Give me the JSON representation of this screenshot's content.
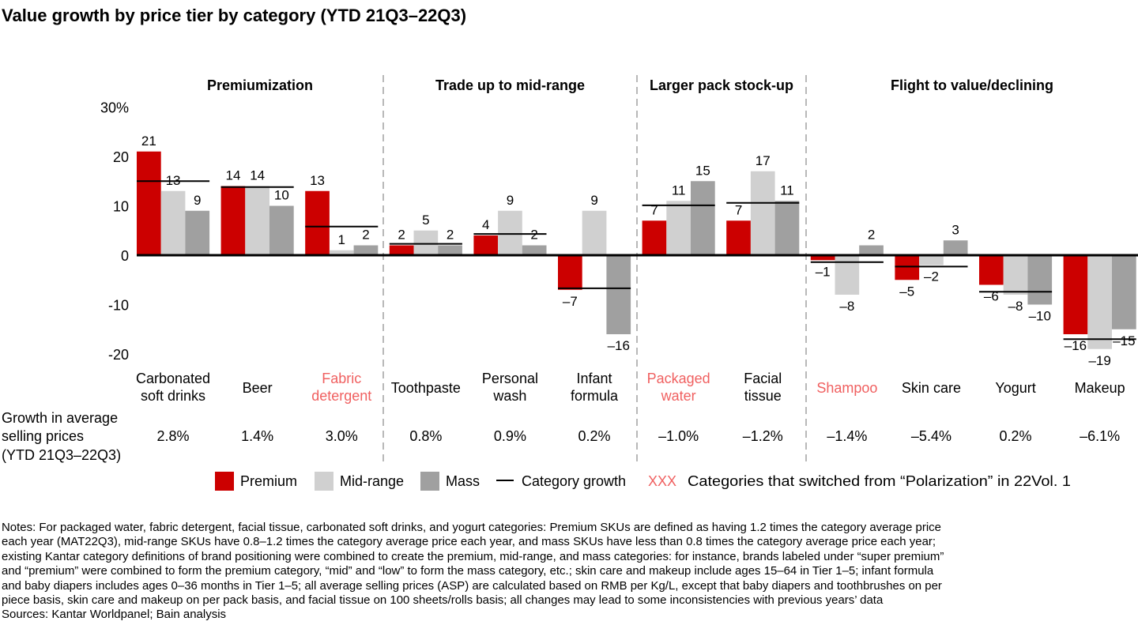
{
  "chart_data": {
    "type": "bar",
    "title": "Value growth by price tier by category (YTD 21Q3–22Q3)",
    "ylim": [
      -20,
      30
    ],
    "yticks": [
      "30%",
      "20",
      "10",
      "0",
      "-10",
      "-20"
    ],
    "ytick_values": [
      30,
      20,
      10,
      0,
      -10,
      -20
    ],
    "grid": false,
    "legend_position": "bottom",
    "sections": [
      {
        "label": "Premiumization",
        "categories": [
          0,
          1,
          2
        ]
      },
      {
        "label": "Trade up to mid-range",
        "categories": [
          3,
          4,
          5
        ]
      },
      {
        "label": "Larger pack stock-up",
        "categories": [
          6,
          7
        ]
      },
      {
        "label": "Flight to value/declining",
        "categories": [
          8,
          9,
          10,
          11
        ]
      }
    ],
    "categories": [
      {
        "line1": "Carbonated",
        "line2": "soft drinks",
        "switched": false
      },
      {
        "line1": "Beer",
        "line2": "",
        "switched": false
      },
      {
        "line1": "Fabric",
        "line2": "detergent",
        "switched": true
      },
      {
        "line1": "Toothpaste",
        "line2": "",
        "switched": false
      },
      {
        "line1": "Personal",
        "line2": "wash",
        "switched": false
      },
      {
        "line1": "Infant",
        "line2": "formula",
        "switched": false
      },
      {
        "line1": "Packaged",
        "line2": "water",
        "switched": true
      },
      {
        "line1": "Facial",
        "line2": "tissue",
        "switched": false
      },
      {
        "line1": "Shampoo",
        "line2": "",
        "switched": true
      },
      {
        "line1": "Skin care",
        "line2": "",
        "switched": false
      },
      {
        "line1": "Yogurt",
        "line2": "",
        "switched": false
      },
      {
        "line1": "Makeup",
        "line2": "",
        "switched": false
      }
    ],
    "series": [
      {
        "name": "Premium",
        "color": "#cc0000",
        "values": [
          21,
          14,
          13,
          2,
          4,
          -7,
          7,
          7,
          -1,
          -5,
          -6,
          -16
        ],
        "labels": [
          "21",
          "14",
          "13",
          "2",
          "4",
          "–7",
          "7",
          "7",
          "–1",
          "–5",
          "–6",
          "–16"
        ]
      },
      {
        "name": "Mid-range",
        "color": "#d0d0d0",
        "values": [
          13,
          14,
          1,
          5,
          9,
          9,
          11,
          17,
          -8,
          -2,
          -8,
          -19
        ],
        "labels": [
          "13",
          "14",
          "1",
          "5",
          "9",
          "9",
          "11",
          "17",
          "–8",
          "–2",
          "–8",
          "–19"
        ]
      },
      {
        "name": "Mass",
        "color": "#a0a0a0",
        "values": [
          9,
          10,
          2,
          2,
          2,
          -16,
          15,
          11,
          2,
          3,
          -10,
          -15
        ],
        "labels": [
          "9",
          "10",
          "2",
          "2",
          "2",
          "–16",
          "15",
          "11",
          "2",
          "3",
          "–10",
          "–15"
        ]
      }
    ],
    "category_growth": {
      "name": "Category growth",
      "color": "#000000",
      "values": [
        15,
        13.8,
        5.8,
        2.3,
        4.3,
        -6.7,
        10.1,
        10.6,
        -1.4,
        -2.3,
        -7.4,
        -17
      ]
    },
    "asp_row": {
      "label_lines": [
        "Growth in average",
        "selling prices",
        "(YTD 21Q3–22Q3)"
      ],
      "values": [
        "2.8%",
        "1.4%",
        "3.0%",
        "0.8%",
        "0.9%",
        "0.2%",
        "–1.0%",
        "–1.2%",
        "–1.4%",
        "–5.4%",
        "0.2%",
        "–6.1%"
      ]
    },
    "legend": {
      "premium": "Premium",
      "mid": "Mid-range",
      "mass": "Mass",
      "growth": "Category growth",
      "switched_marker": "XXX",
      "switched_text": "Categories that switched from “Polarization” in 22Vol. 1",
      "switched_color": "#f06060"
    }
  },
  "notes": [
    "Notes: For packaged water, fabric detergent, facial tissue, carbonated soft drinks, and yogurt categories: Premium SKUs are defined as having 1.2 times the category average price",
    "each year (MAT22Q3), mid-range SKUs have 0.8–1.2 times the category average price each year, and mass SKUs have less than 0.8 times the category average price each year;",
    "existing Kantar category definitions of brand positioning were combined to create the premium, mid-range, and mass categories: for instance, brands labeled under “super premium”",
    "and “premium” were combined to form the premium category, “mid” and “low” to form the mass category, etc.; skin care and makeup include ages 15–64 in Tier 1–5; infant formula",
    "and baby diapers includes ages 0–36 months in Tier 1–5; all average selling prices (ASP) are calculated based on RMB per Kg/L, except that baby diapers and toothbrushes on per",
    "piece basis, skin care and makeup on per pack basis, and facial tissue on 100 sheets/rolls basis; all changes may lead to some inconsistencies with previous years’ data",
    "Sources: Kantar Worldpanel; Bain analysis"
  ]
}
